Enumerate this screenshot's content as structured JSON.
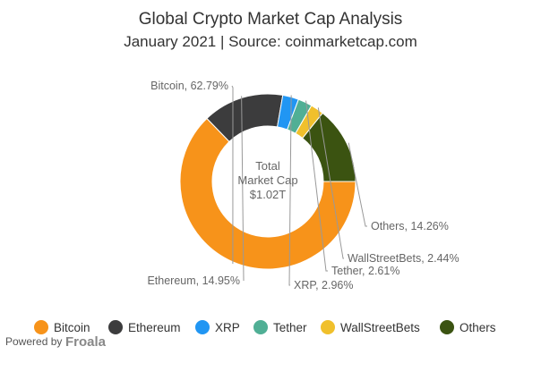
{
  "chart_data": {
    "type": "pie",
    "title": "Global Crypto Market Cap Analysis",
    "subtitle": "January 2021 | Source: coinmarketcap.com",
    "center_label": [
      "Total",
      "Market Cap",
      "$1.02T"
    ],
    "slices": [
      {
        "name": "Bitcoin",
        "value": 62.79,
        "label": "Bitcoin, 62.79%",
        "color": "#F7931A"
      },
      {
        "name": "Ethereum",
        "value": 14.95,
        "label": "Ethereum, 14.95%",
        "color": "#3C3C3D"
      },
      {
        "name": "XRP",
        "value": 2.96,
        "label": "XRP, 2.96%",
        "color": "#2196F3"
      },
      {
        "name": "Tether",
        "value": 2.61,
        "label": "Tether, 2.61%",
        "color": "#50AF95"
      },
      {
        "name": "WallStreetBets",
        "value": 2.44,
        "label": "WallStreetBets, 2.44%",
        "color": "#F0C02C"
      },
      {
        "name": "Others",
        "value": 14.26,
        "label": "Others, 14.26%",
        "color": "#3B5311"
      }
    ],
    "start_angle_deg": 90,
    "direction": "clockwise",
    "legend_position": "bottom"
  },
  "credit": {
    "powered_by": "Powered by",
    "brand": "Froala"
  }
}
